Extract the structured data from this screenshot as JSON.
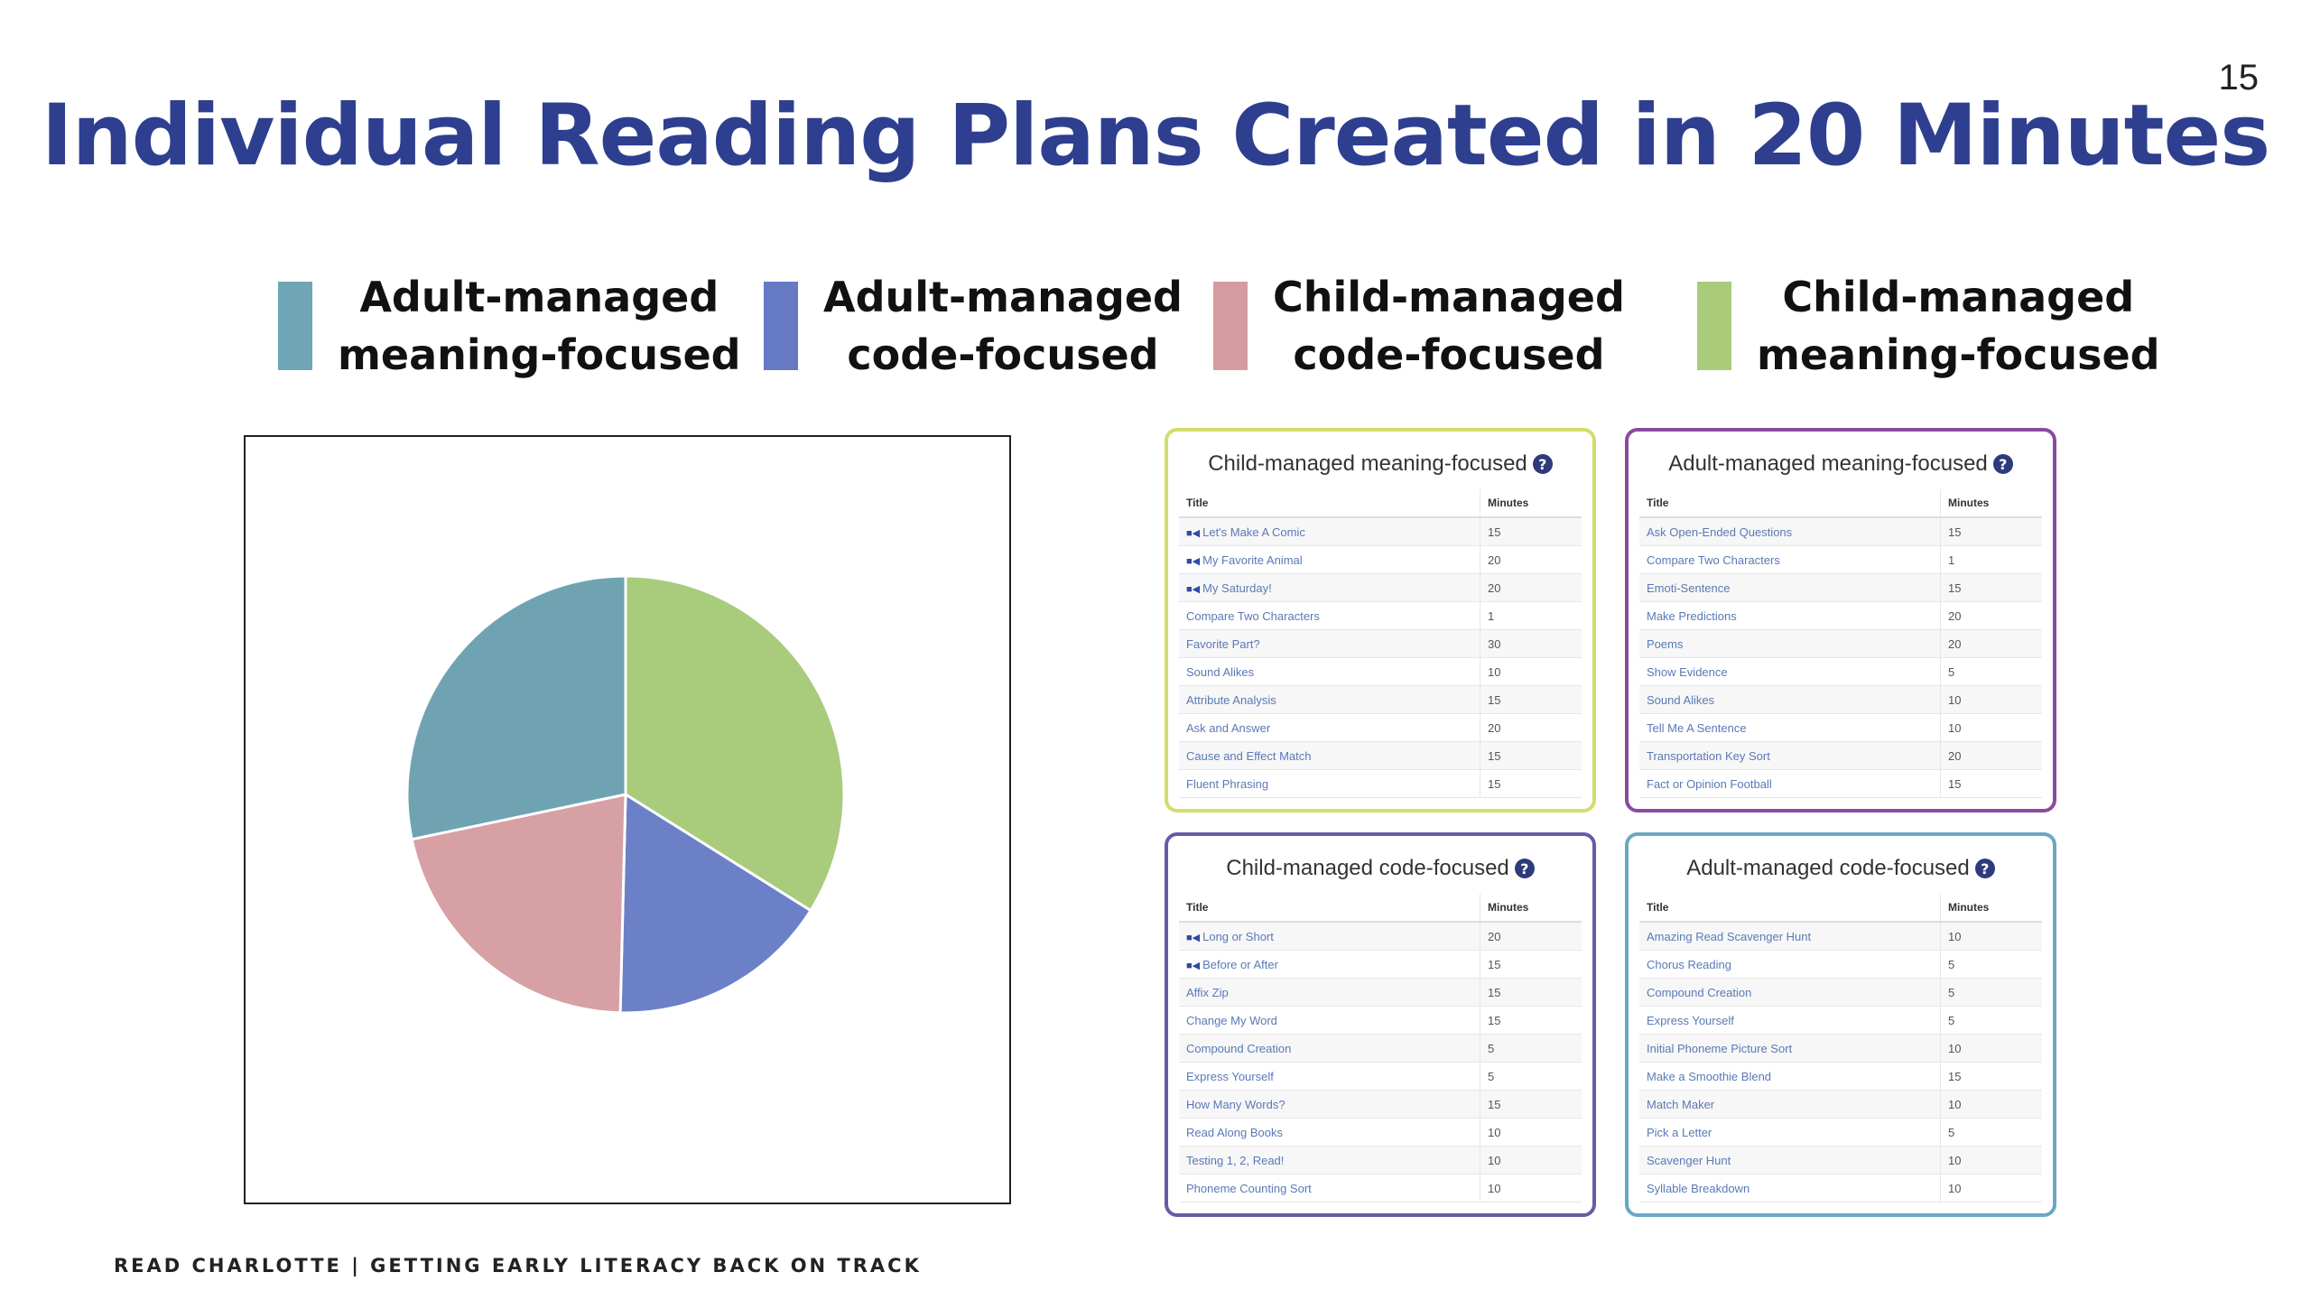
{
  "slide": {
    "number": "15",
    "title": "Individual Reading Plans Created in 20 Minutes",
    "footer": "READ CHARLOTTE | GETTING EARLY LITERACY BACK ON TRACK"
  },
  "legend": [
    {
      "line1": "Adult-managed",
      "line2": "meaning-focused",
      "color": "#6fa6b5"
    },
    {
      "line1": "Adult-managed",
      "line2": "code-focused",
      "color": "#6579c4"
    },
    {
      "line1": "Child-managed",
      "line2": "code-focused",
      "color": "#d49ca0"
    },
    {
      "line1": "Child-managed",
      "line2": "meaning-focused",
      "color": "#aacb7a"
    }
  ],
  "chart_data": {
    "type": "pie",
    "title": "",
    "slices": [
      {
        "category": "Child-managed meaning-focused",
        "value": 175,
        "color": "#a9cb7c"
      },
      {
        "category": "Adult-managed code-focused",
        "value": 85,
        "color": "#6b80c6"
      },
      {
        "category": "Child-managed code-focused",
        "value": 110,
        "color": "#d6a0a4"
      },
      {
        "category": "Adult-managed meaning-focused",
        "value": 146,
        "color": "#6fa3b2"
      }
    ]
  },
  "panels": [
    {
      "title": "Child-managed meaning-focused",
      "border": "#d3dd6a",
      "col_title": "Title",
      "col_minutes": "Minutes",
      "rows": [
        {
          "title": "Let's Make A Comic",
          "minutes": "15",
          "video": true
        },
        {
          "title": "My Favorite Animal",
          "minutes": "20",
          "video": true
        },
        {
          "title": "My Saturday!",
          "minutes": "20",
          "video": true
        },
        {
          "title": "Compare Two Characters",
          "minutes": "1",
          "video": false
        },
        {
          "title": "Favorite Part?",
          "minutes": "30",
          "video": false
        },
        {
          "title": "Sound Alikes",
          "minutes": "10",
          "video": false
        },
        {
          "title": "Attribute Analysis",
          "minutes": "15",
          "video": false
        },
        {
          "title": "Ask and Answer",
          "minutes": "20",
          "video": false
        },
        {
          "title": "Cause and Effect Match",
          "minutes": "15",
          "video": false
        },
        {
          "title": "Fluent Phrasing",
          "minutes": "15",
          "video": false
        }
      ]
    },
    {
      "title": "Adult-managed meaning-focused",
      "border": "#8a4aa0",
      "col_title": "Title",
      "col_minutes": "Minutes",
      "rows": [
        {
          "title": "Ask Open-Ended Questions",
          "minutes": "15",
          "video": false
        },
        {
          "title": "Compare Two Characters",
          "minutes": "1",
          "video": false
        },
        {
          "title": "Emoti-Sentence",
          "minutes": "15",
          "video": false
        },
        {
          "title": "Make Predictions",
          "minutes": "20",
          "video": false
        },
        {
          "title": "Poems",
          "minutes": "20",
          "video": false
        },
        {
          "title": "Show Evidence",
          "minutes": "5",
          "video": false
        },
        {
          "title": "Sound Alikes",
          "minutes": "10",
          "video": false
        },
        {
          "title": "Tell Me A Sentence",
          "minutes": "10",
          "video": false
        },
        {
          "title": "Transportation Key Sort",
          "minutes": "20",
          "video": false
        },
        {
          "title": "Fact or Opinion Football",
          "minutes": "15",
          "video": false
        }
      ]
    },
    {
      "title": "Child-managed code-focused",
      "border": "#6a5aa5",
      "col_title": "Title",
      "col_minutes": "Minutes",
      "rows": [
        {
          "title": "Long or Short",
          "minutes": "20",
          "video": true
        },
        {
          "title": "Before or After",
          "minutes": "15",
          "video": true
        },
        {
          "title": "Affix Zip",
          "minutes": "15",
          "video": false
        },
        {
          "title": "Change My Word",
          "minutes": "15",
          "video": false
        },
        {
          "title": "Compound Creation",
          "minutes": "5",
          "video": false
        },
        {
          "title": "Express Yourself",
          "minutes": "5",
          "video": false
        },
        {
          "title": "How Many Words?",
          "minutes": "15",
          "video": false
        },
        {
          "title": "Read Along Books",
          "minutes": "10",
          "video": false
        },
        {
          "title": "Testing 1, 2, Read!",
          "minutes": "10",
          "video": false
        },
        {
          "title": "Phoneme Counting Sort",
          "minutes": "10",
          "video": false
        }
      ]
    },
    {
      "title": "Adult-managed code-focused",
      "border": "#6aa7c4",
      "col_title": "Title",
      "col_minutes": "Minutes",
      "rows": [
        {
          "title": "Amazing Read Scavenger Hunt",
          "minutes": "10",
          "video": false
        },
        {
          "title": "Chorus Reading",
          "minutes": "5",
          "video": false
        },
        {
          "title": "Compound Creation",
          "minutes": "5",
          "video": false
        },
        {
          "title": "Express Yourself",
          "minutes": "5",
          "video": false
        },
        {
          "title": "Initial Phoneme Picture Sort",
          "minutes": "10",
          "video": false
        },
        {
          "title": "Make a Smoothie Blend",
          "minutes": "15",
          "video": false
        },
        {
          "title": "Match Maker",
          "minutes": "10",
          "video": false
        },
        {
          "title": "Pick a Letter",
          "minutes": "5",
          "video": false
        },
        {
          "title": "Scavenger Hunt",
          "minutes": "10",
          "video": false
        },
        {
          "title": "Syllable Breakdown",
          "minutes": "10",
          "video": false
        }
      ]
    }
  ]
}
